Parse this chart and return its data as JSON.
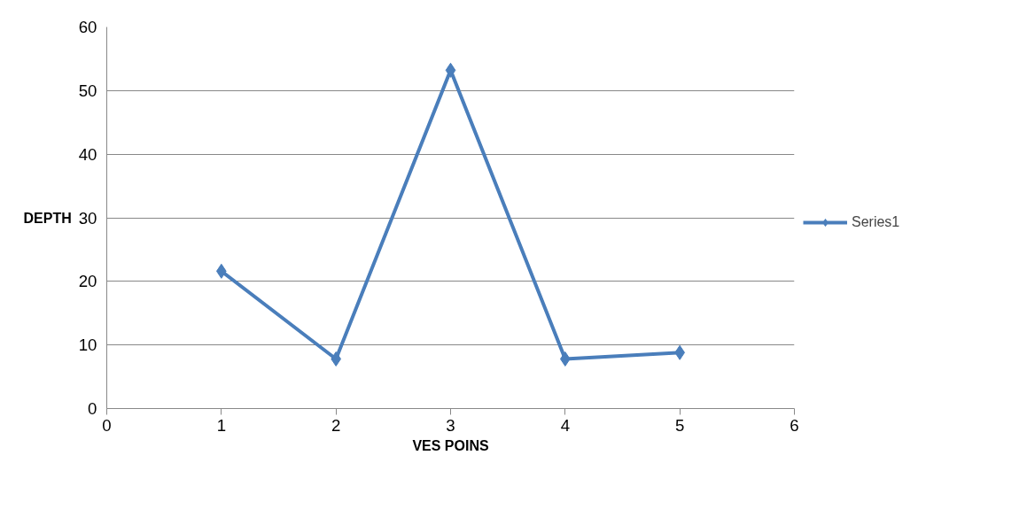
{
  "chart_data": {
    "type": "line",
    "xlabel": "VES POINS",
    "ylabel": "DEPTH",
    "x": [
      1,
      2,
      3,
      4,
      5
    ],
    "series": [
      {
        "name": "Series1",
        "color": "#4a7ebb",
        "values": [
          21.6,
          7.8,
          53.2,
          7.8,
          8.8
        ]
      }
    ],
    "xlim": [
      0,
      6
    ],
    "xticks": [
      0,
      1,
      2,
      3,
      4,
      5,
      6
    ],
    "ylim": [
      0,
      60
    ],
    "yticks": [
      0,
      10,
      20,
      30,
      40,
      50,
      60
    ],
    "grid": "y",
    "legend": "right",
    "marker": "diamond"
  }
}
